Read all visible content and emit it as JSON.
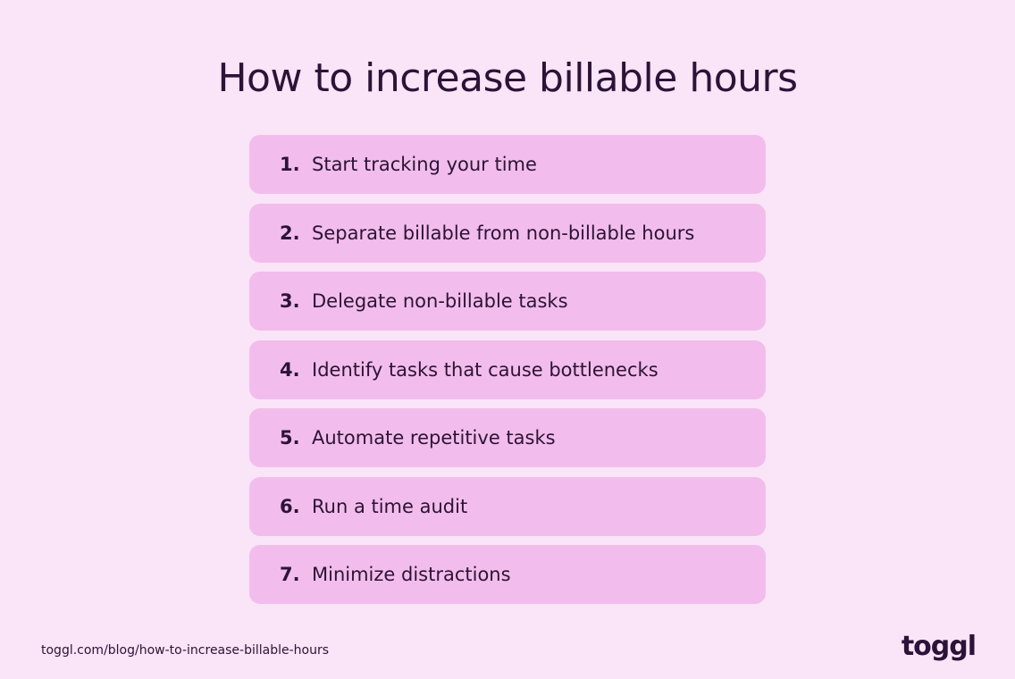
{
  "header": {
    "title": "How to increase billable hours"
  },
  "list": {
    "items": [
      {
        "number": "1.",
        "text": "Start tracking your time"
      },
      {
        "number": "2.",
        "text": "Separate billable from non-billable hours"
      },
      {
        "number": "3.",
        "text": "Delegate non-billable tasks"
      },
      {
        "number": "4.",
        "text": "Identify tasks that cause bottlenecks"
      },
      {
        "number": "5.",
        "text": "Automate repetitive tasks"
      },
      {
        "number": "6.",
        "text": "Run a time audit"
      },
      {
        "number": "7.",
        "text": "Minimize distractions"
      }
    ]
  },
  "footer": {
    "url": "toggl.com/blog/how-to-increase-billable-hours",
    "logo": "toggl"
  }
}
